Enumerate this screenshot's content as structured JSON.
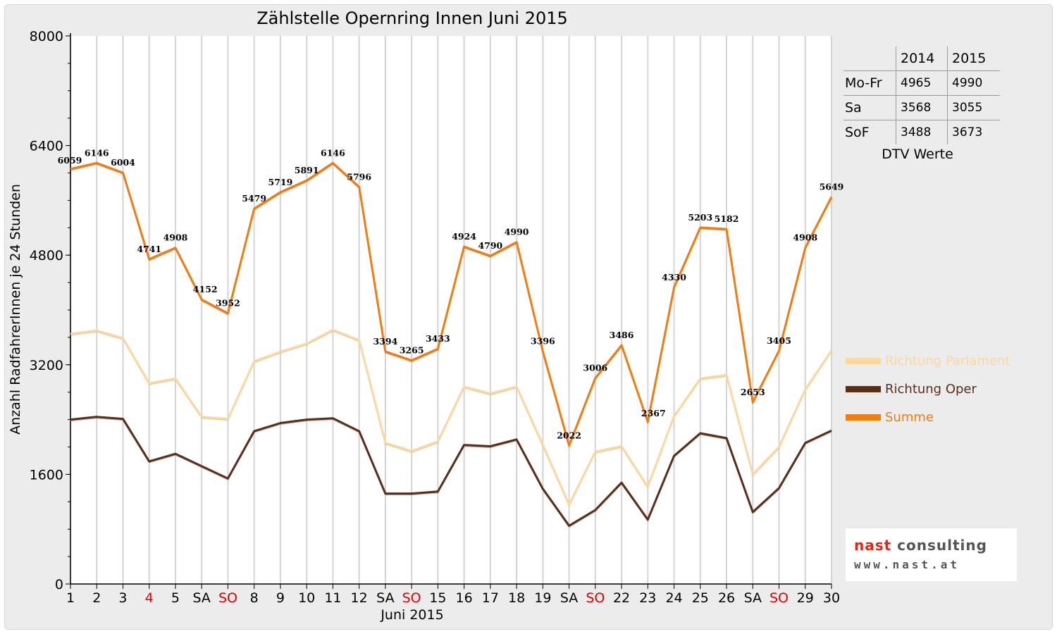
{
  "chart_data": {
    "type": "line",
    "title": "Zählstelle Opernring Innen Juni 2015",
    "xlabel": "Juni 2015",
    "ylabel": "Anzahl RadfahrerInnen je 24 Stunden",
    "ylim": [
      0,
      8000
    ],
    "yticks": [
      0,
      1600,
      3200,
      4800,
      6400,
      8000
    ],
    "grid": "vertical",
    "legend_placement": "right",
    "categories": [
      "1",
      "2",
      "3",
      "4",
      "5",
      "SA",
      "SO",
      "8",
      "9",
      "10",
      "11",
      "12",
      "SA",
      "SO",
      "15",
      "16",
      "17",
      "18",
      "19",
      "SA",
      "SO",
      "22",
      "23",
      "24",
      "25",
      "26",
      "SA",
      "SO",
      "29",
      "30"
    ],
    "category_colors": [
      "#000000",
      "#000000",
      "#000000",
      "#e00000",
      "#000000",
      "#000000",
      "#e00000",
      "#000000",
      "#000000",
      "#000000",
      "#000000",
      "#000000",
      "#000000",
      "#e00000",
      "#000000",
      "#000000",
      "#000000",
      "#000000",
      "#000000",
      "#000000",
      "#e00000",
      "#000000",
      "#000000",
      "#000000",
      "#000000",
      "#000000",
      "#000000",
      "#e00000",
      "#000000",
      "#000000"
    ],
    "series": [
      {
        "name": "Richtung Parlament",
        "color": "#fbd7a2",
        "values": [
          3650,
          3700,
          3590,
          2930,
          3000,
          2440,
          2410,
          3250,
          3390,
          3510,
          3710,
          3560,
          2060,
          1940,
          2080,
          2880,
          2780,
          2880,
          2030,
          1160,
          1930,
          2010,
          1420,
          2450,
          3000,
          3050,
          1600,
          2000,
          2840,
          3410
        ]
      },
      {
        "name": "Richtung Oper",
        "color": "#5a2f1a",
        "values": [
          2400,
          2440,
          2410,
          1790,
          1900,
          1720,
          1540,
          2230,
          2350,
          2400,
          2420,
          2230,
          1320,
          1320,
          1350,
          2030,
          2010,
          2110,
          1390,
          850,
          1080,
          1480,
          940,
          1870,
          2200,
          2130,
          1050,
          1400,
          2060,
          2240
        ]
      },
      {
        "name": "Summe",
        "color": "#f07c12",
        "values": [
          6059,
          6146,
          6004,
          4741,
          4908,
          4152,
          3952,
          5479,
          5719,
          5891,
          6146,
          5796,
          3394,
          3265,
          3433,
          4924,
          4790,
          4990,
          3396,
          2022,
          3006,
          3486,
          2367,
          4330,
          5203,
          5182,
          2653,
          3405,
          4908,
          5649
        ]
      }
    ],
    "data_labels": [
      "6059",
      "6146",
      "6004",
      "4741",
      "4908",
      "4152",
      "3952",
      "5479",
      "5719",
      "5891",
      "6146",
      "5796",
      "3394",
      "3265",
      "3433",
      "4924",
      "4790",
      "4990",
      "3396",
      "2022",
      "3006",
      "3486",
      "2367",
      "4330",
      "5203",
      "5182",
      "2653",
      "3405",
      "4908",
      "5649"
    ]
  },
  "legend": {
    "items": [
      {
        "label": "Richtung Parlament",
        "color": "#fbd7a2"
      },
      {
        "label": "Richtung Oper",
        "color": "#5a2f1a"
      },
      {
        "label": "Summe",
        "color": "#f07c12"
      }
    ]
  },
  "dtv_table": {
    "header": [
      "",
      "2014",
      "2015"
    ],
    "rows": [
      {
        "label": "Mo-Fr",
        "v2014": "4965",
        "v2015": "4990"
      },
      {
        "label": "Sa",
        "v2014": "3568",
        "v2015": "3055"
      },
      {
        "label": "SoF",
        "v2014": "3488",
        "v2015": "3673"
      }
    ],
    "caption": "DTV Werte"
  },
  "logo": {
    "name_part1": "nast",
    "name_part2": " consulting",
    "url": "www.nast.at"
  }
}
